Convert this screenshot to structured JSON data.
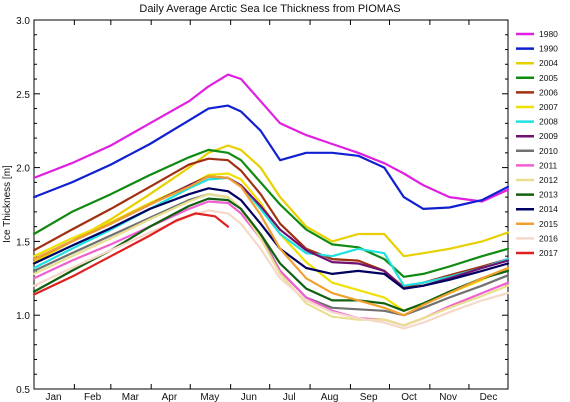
{
  "chart_data": {
    "type": "line",
    "title": "Daily Average Arctic Sea Ice Thickness from PIOMAS",
    "xlabel": "",
    "ylabel": "Ice Thickness  [m]",
    "ylim": [
      0.5,
      3.0
    ],
    "yticks": [
      "0.5",
      "1.0",
      "1.5",
      "2.0",
      "2.5",
      "3.0"
    ],
    "xlim": [
      1,
      365
    ],
    "x_tick_labels": [
      "Jan",
      "Feb",
      "Mar",
      "Apr",
      "May",
      "Jun",
      "Jul",
      "Aug",
      "Sep",
      "Oct",
      "Nov",
      "Dec"
    ],
    "x_tick_days": [
      16,
      46,
      75,
      105,
      136,
      166,
      197,
      228,
      258,
      289,
      319,
      350
    ],
    "x_minor_days": [
      1,
      32,
      60,
      91,
      121,
      152,
      182,
      213,
      244,
      274,
      305,
      335,
      365
    ],
    "grid": false,
    "legend_position": "right-outside",
    "x": [
      1,
      30,
      60,
      90,
      120,
      135,
      150,
      160,
      175,
      190,
      210,
      230,
      250,
      270,
      285,
      300,
      320,
      345,
      365
    ],
    "series": [
      {
        "name": "1980",
        "color": "#e020e0",
        "values": [
          1.93,
          2.03,
          2.15,
          2.3,
          2.45,
          2.55,
          2.63,
          2.6,
          2.45,
          2.3,
          2.22,
          2.16,
          2.1,
          2.03,
          1.96,
          1.88,
          1.8,
          1.77,
          1.85
        ]
      },
      {
        "name": "1990",
        "color": "#1020d0",
        "values": [
          1.8,
          1.9,
          2.02,
          2.16,
          2.32,
          2.4,
          2.42,
          2.38,
          2.25,
          2.05,
          2.1,
          2.1,
          2.08,
          2.0,
          1.8,
          1.72,
          1.73,
          1.78,
          1.87
        ]
      },
      {
        "name": "2004",
        "color": "#e8d000",
        "values": [
          1.36,
          1.5,
          1.65,
          1.82,
          2.0,
          2.1,
          2.15,
          2.12,
          2.0,
          1.8,
          1.6,
          1.5,
          1.55,
          1.55,
          1.4,
          1.42,
          1.45,
          1.5,
          1.56
        ]
      },
      {
        "name": "2005",
        "color": "#108a10",
        "values": [
          1.55,
          1.7,
          1.82,
          1.95,
          2.07,
          2.12,
          2.1,
          2.05,
          1.9,
          1.75,
          1.58,
          1.48,
          1.46,
          1.38,
          1.26,
          1.28,
          1.33,
          1.4,
          1.45
        ]
      },
      {
        "name": "2006",
        "color": "#a03010",
        "values": [
          1.44,
          1.58,
          1.72,
          1.87,
          2.02,
          2.06,
          2.05,
          1.98,
          1.82,
          1.62,
          1.45,
          1.38,
          1.37,
          1.3,
          1.19,
          1.22,
          1.27,
          1.33,
          1.38
        ]
      },
      {
        "name": "2007",
        "color": "#f0e000",
        "values": [
          1.4,
          1.52,
          1.63,
          1.76,
          1.88,
          1.95,
          1.96,
          1.92,
          1.76,
          1.55,
          1.36,
          1.22,
          1.17,
          1.12,
          1.03,
          1.08,
          1.15,
          1.24,
          1.32
        ]
      },
      {
        "name": "2008",
        "color": "#20e0e0",
        "values": [
          1.32,
          1.45,
          1.58,
          1.72,
          1.86,
          1.92,
          1.93,
          1.88,
          1.72,
          1.55,
          1.42,
          1.4,
          1.45,
          1.42,
          1.2,
          1.22,
          1.26,
          1.32,
          1.38
        ]
      },
      {
        "name": "2009",
        "color": "#701070",
        "values": [
          1.38,
          1.5,
          1.62,
          1.75,
          1.88,
          1.94,
          1.93,
          1.88,
          1.74,
          1.58,
          1.44,
          1.36,
          1.35,
          1.3,
          1.18,
          1.2,
          1.25,
          1.32,
          1.37
        ]
      },
      {
        "name": "2010",
        "color": "#707070",
        "values": [
          1.3,
          1.42,
          1.54,
          1.66,
          1.78,
          1.82,
          1.8,
          1.72,
          1.54,
          1.3,
          1.12,
          1.05,
          1.04,
          1.03,
          1.0,
          1.05,
          1.12,
          1.2,
          1.27
        ]
      },
      {
        "name": "2011",
        "color": "#f060d0",
        "values": [
          1.25,
          1.37,
          1.48,
          1.6,
          1.72,
          1.77,
          1.76,
          1.69,
          1.52,
          1.3,
          1.12,
          1.03,
          0.98,
          0.97,
          0.93,
          0.98,
          1.06,
          1.15,
          1.22
        ]
      },
      {
        "name": "2012",
        "color": "#e8e090",
        "values": [
          1.28,
          1.4,
          1.52,
          1.65,
          1.77,
          1.82,
          1.8,
          1.72,
          1.52,
          1.28,
          1.08,
          0.99,
          0.97,
          0.97,
          0.93,
          0.98,
          1.05,
          1.13,
          1.2
        ]
      },
      {
        "name": "2013",
        "color": "#106010",
        "values": [
          1.16,
          1.3,
          1.44,
          1.6,
          1.74,
          1.79,
          1.78,
          1.72,
          1.55,
          1.35,
          1.18,
          1.1,
          1.1,
          1.08,
          1.03,
          1.08,
          1.16,
          1.25,
          1.3
        ]
      },
      {
        "name": "2014",
        "color": "#000060",
        "values": [
          1.35,
          1.47,
          1.59,
          1.72,
          1.82,
          1.86,
          1.84,
          1.78,
          1.62,
          1.45,
          1.32,
          1.28,
          1.3,
          1.28,
          1.18,
          1.2,
          1.24,
          1.3,
          1.35
        ]
      },
      {
        "name": "2015",
        "color": "#f0a030",
        "values": [
          1.38,
          1.5,
          1.62,
          1.75,
          1.87,
          1.94,
          1.93,
          1.87,
          1.68,
          1.45,
          1.25,
          1.15,
          1.1,
          1.05,
          1.0,
          1.07,
          1.15,
          1.25,
          1.32
        ]
      },
      {
        "name": "2016",
        "color": "#f5d8c8",
        "values": [
          1.2,
          1.32,
          1.44,
          1.56,
          1.67,
          1.71,
          1.69,
          1.62,
          1.45,
          1.25,
          1.1,
          1.02,
          0.98,
          0.95,
          0.91,
          0.95,
          1.02,
          1.1,
          1.15
        ]
      },
      {
        "name": "2017",
        "color": "#e02020",
        "x": [
          1,
          30,
          60,
          90,
          110,
          125,
          140,
          150
        ],
        "values": [
          1.14,
          1.26,
          1.4,
          1.54,
          1.64,
          1.69,
          1.67,
          1.6
        ]
      }
    ]
  }
}
